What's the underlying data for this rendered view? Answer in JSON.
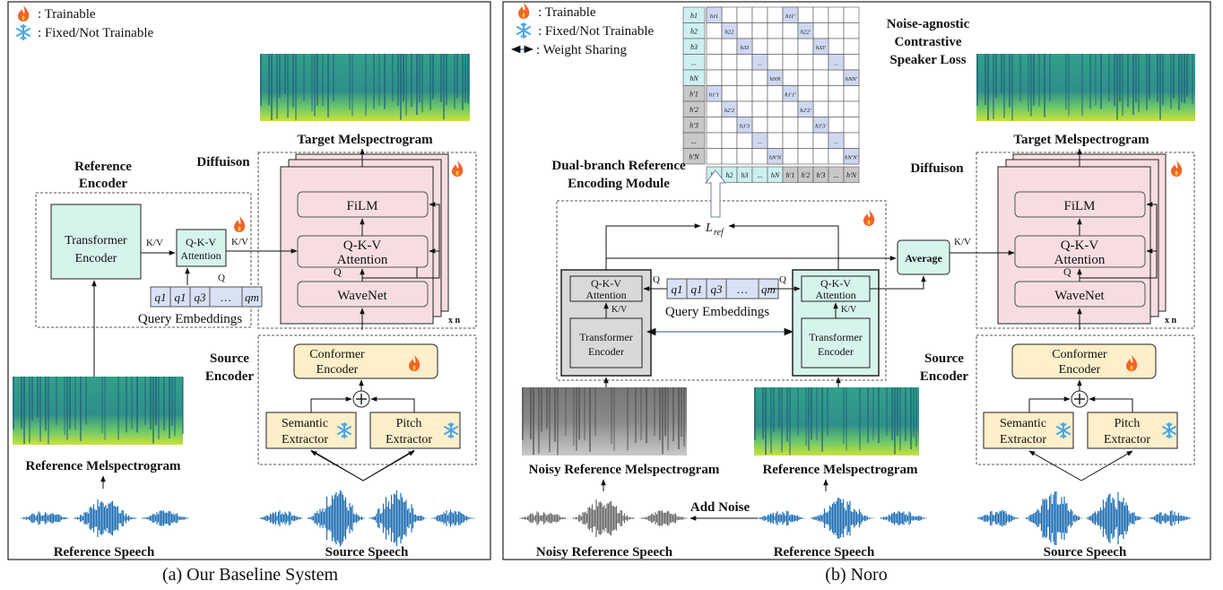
{
  "legend": {
    "trainable": ": Trainable",
    "fixed": ": Fixed/Not Trainable",
    "weight_sharing": ": Weight Sharing"
  },
  "captions": {
    "baseline": "(a) Our Baseline System",
    "noro": "(b) Noro"
  },
  "labels": {
    "target_mel": "Target Melspectrogram",
    "diffusion": "Diffuison",
    "reference_encoder": [
      "Reference",
      "Encoder"
    ],
    "transformer_encoder": [
      "Transformer",
      "Encoder"
    ],
    "qkv_attention": [
      "Q-K-V",
      "Attention"
    ],
    "kv": "K/V",
    "q": "Q",
    "query_embeddings": "Query Embeddings",
    "query_tokens": [
      "q1",
      "q1",
      "q3",
      "…",
      "qm"
    ],
    "film": "FiLM",
    "wavenet": "WaveNet",
    "xn": "x n",
    "source_encoder": [
      "Source",
      "Encoder"
    ],
    "conformer_encoder": [
      "Conformer",
      "Encoder"
    ],
    "semantic_extractor": [
      "Semantic",
      "Extractor"
    ],
    "pitch_extractor": [
      "Pitch",
      "Extractor"
    ],
    "reference_mel": "Reference Melspectrogram",
    "reference_speech": "Reference Speech",
    "source_speech": "Source Speech",
    "noisy_reference_mel": "Noisy Reference Melspectrogram",
    "noisy_reference_speech": "Noisy Reference Speech",
    "add_noise": "Add Noise",
    "dual_branch": [
      "Dual-branch Reference",
      "Encoding Module"
    ],
    "average": "Average",
    "l_ref": "L",
    "l_ref_sub": "ref",
    "contrastive_loss": [
      "Noise-agnostic",
      "Contrastive",
      "Speaker Loss"
    ]
  },
  "matrix": {
    "row_labels": [
      "h1",
      "h2",
      "h3",
      "...",
      "hN",
      "h'1",
      "h'2",
      "h'3",
      "...",
      "h'N"
    ],
    "col_labels": [
      "h1",
      "h2",
      "h3",
      "...",
      "hN",
      "h'1",
      "h'2",
      "h'3",
      "...",
      "h'N"
    ],
    "cells": [
      {
        "r": 0,
        "c": 0,
        "t": "h11"
      },
      {
        "r": 0,
        "c": 5,
        "t": "h11'"
      },
      {
        "r": 1,
        "c": 1,
        "t": "h22"
      },
      {
        "r": 1,
        "c": 6,
        "t": "h22'"
      },
      {
        "r": 2,
        "c": 2,
        "t": "h33"
      },
      {
        "r": 2,
        "c": 7,
        "t": "h33'"
      },
      {
        "r": 3,
        "c": 3,
        "t": "..."
      },
      {
        "r": 3,
        "c": 8,
        "t": "..."
      },
      {
        "r": 4,
        "c": 4,
        "t": "hNN"
      },
      {
        "r": 4,
        "c": 9,
        "t": "hNN'"
      },
      {
        "r": 5,
        "c": 0,
        "t": "h1'1"
      },
      {
        "r": 5,
        "c": 5,
        "t": "h1'1'"
      },
      {
        "r": 6,
        "c": 1,
        "t": "h2'2"
      },
      {
        "r": 6,
        "c": 6,
        "t": "h2'2'"
      },
      {
        "r": 7,
        "c": 2,
        "t": "h3'3"
      },
      {
        "r": 7,
        "c": 7,
        "t": "h3'3'"
      },
      {
        "r": 8,
        "c": 3,
        "t": "..."
      },
      {
        "r": 8,
        "c": 8,
        "t": "..."
      },
      {
        "r": 9,
        "c": 4,
        "t": "hN'N"
      },
      {
        "r": 9,
        "c": 9,
        "t": "hN'N'"
      }
    ]
  },
  "colors": {
    "transformer_fill": "#d6f3ec",
    "diffusion_fill": "#f7dde2",
    "source_fill": "#fdefc9",
    "query_fill": "#d9e1f4",
    "gray_fill": "#d9d9d9",
    "cell_blue": "#cfd8f0",
    "cell_cyan": "#cdeff0",
    "cell_gray": "#c8c8c8",
    "wave_blue": "#1f6fb4",
    "wave_gray": "#6a6a6a",
    "fire": "#f0642a",
    "snow": "#4aa7e3"
  }
}
